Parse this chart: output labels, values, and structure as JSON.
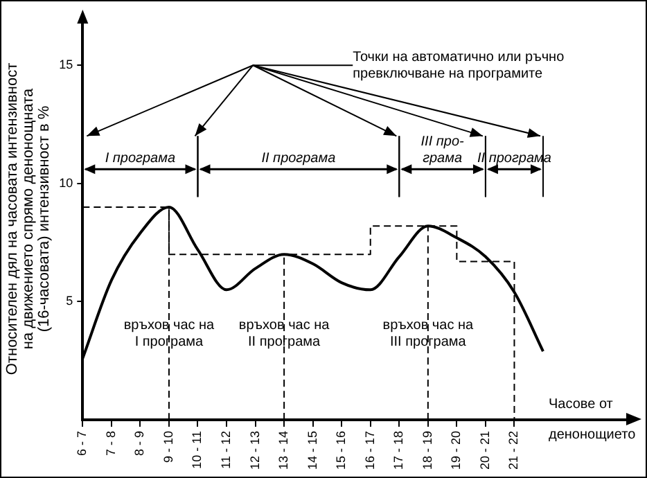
{
  "chart_data": {
    "type": "line",
    "ylabel": "Относителен дял на часовата интензивност на движението спрямо денонощната (16-часовата) интензивност в %",
    "xlabel": "Часове от денонощието",
    "categories": [
      "6 - 7",
      "7 - 8",
      "8 - 9",
      "9 - 10",
      "10 - 11",
      "11 - 12",
      "12 - 13",
      "13 - 14",
      "14 - 15",
      "15 - 16",
      "16 - 17",
      "17 - 18",
      "18 - 19",
      "19 - 20",
      "20 - 21",
      "21 - 22",
      null
    ],
    "ylim": [
      0,
      17
    ],
    "yticks": [
      5,
      10,
      15
    ],
    "grid": false,
    "legend": false,
    "marker": "none",
    "series": [
      {
        "type": "line",
        "color": "#000000",
        "line_style": "solid",
        "values": [
          2.6,
          5.9,
          7.9,
          9,
          7.2,
          5.5,
          6.4,
          7,
          6.6,
          5.8,
          5.5,
          6.9,
          8.2,
          7.7,
          6.9,
          5.4,
          2.9
        ]
      },
      {
        "type": "step",
        "color": "#000000",
        "line_style": "dashed",
        "values": [
          9,
          9,
          9,
          9,
          7,
          7,
          7,
          7,
          7,
          7,
          7,
          8.2,
          8.2,
          8.2,
          6.7,
          6.7,
          0
        ]
      },
      {
        "type": "line",
        "color": "#000000",
        "line_style": "dashed",
        "x": [
          "9 - 10",
          "9 - 10"
        ],
        "values": [
          0,
          9
        ]
      },
      {
        "type": "line",
        "color": "#000000",
        "line_style": "dashed",
        "x": [
          "13 - 14",
          "13 - 14"
        ],
        "values": [
          0,
          7
        ]
      },
      {
        "type": "line",
        "color": "#000000",
        "line_style": "dashed",
        "x": [
          "18 - 19",
          "18 - 19"
        ],
        "values": [
          0,
          8.2
        ]
      }
    ],
    "annotations": [
      "Точки на автоматично или ръчно превключване на програмите",
      "I програма",
      "II програма",
      "III про-\nграма",
      "II програма",
      {
        "text": "връхов час на I програма",
        "x": "9 - 10",
        "y": 4
      },
      {
        "text": "връхов час на II програма",
        "x": "13 - 14",
        "y": 4
      },
      {
        "text": "връхов час на III програма",
        "x": "18 - 19",
        "y": 4
      }
    ]
  }
}
